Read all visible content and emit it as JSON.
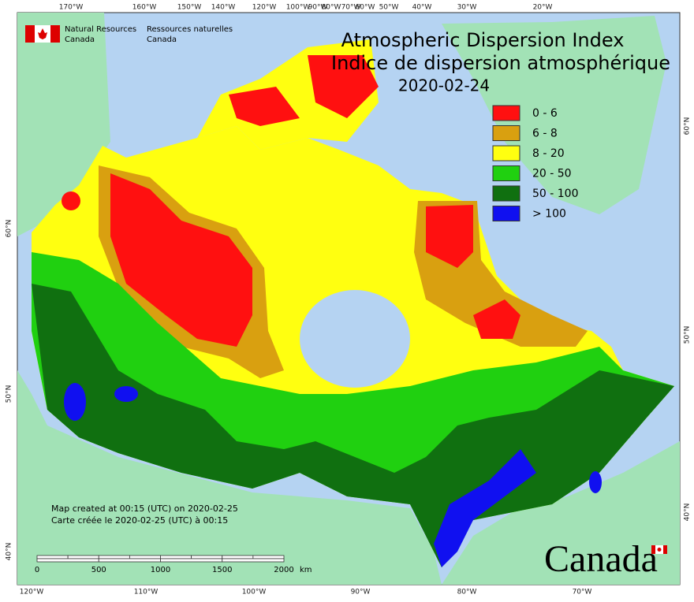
{
  "header": {
    "org_en_1": "Natural Resources",
    "org_en_2": "Canada",
    "org_fr_1": "Ressources naturelles",
    "org_fr_2": "Canada"
  },
  "title": {
    "line1": "Atmospheric Dispersion Index",
    "line2": "Indice de dispersion atmosphérique",
    "date": "2020-02-24"
  },
  "legend": {
    "items": [
      {
        "label": "0 - 6",
        "color": "#ff1010"
      },
      {
        "label": "6 - 8",
        "color": "#d9a010"
      },
      {
        "label": "8 - 20",
        "color": "#ffff10"
      },
      {
        "label": "20 - 50",
        "color": "#20d010"
      },
      {
        "label": "50 - 100",
        "color": "#107010"
      },
      {
        "label": "> 100",
        "color": "#1010f0"
      }
    ]
  },
  "graticule": {
    "top": [
      "170°W",
      "160°W",
      "150°W",
      "140°W",
      "120°W",
      "100°W",
      "90°W",
      "80°W",
      "70°W",
      "60°W",
      "50°W",
      "40°W",
      "30°W",
      "20°W"
    ],
    "bottom": [
      "120°W",
      "110°W",
      "100°W",
      "90°W",
      "80°W",
      "70°W"
    ],
    "left": [
      "60°N",
      "50°N",
      "40°N"
    ],
    "right": [
      "60°N",
      "50°N",
      "40°N"
    ]
  },
  "credits": {
    "line1": "Map created at 00:15 (UTC) on 2020-02-25",
    "line2": "Carte créée le 2020-02-25 (UTC) à 00:15"
  },
  "scale_bar": {
    "ticks": [
      0,
      500,
      1000,
      1500,
      2000
    ],
    "unit": "km"
  },
  "wordmark": "Canada"
}
